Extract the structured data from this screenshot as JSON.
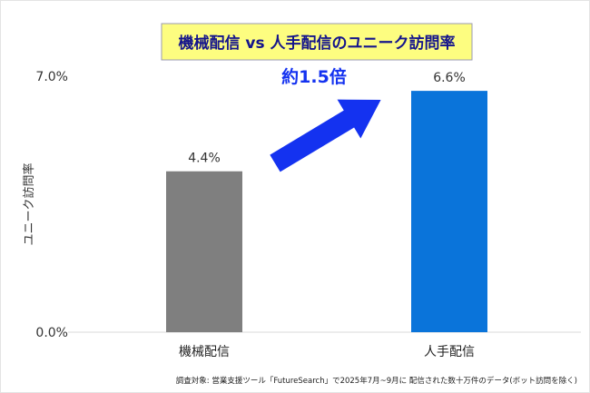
{
  "chart_data": {
    "type": "bar",
    "title": "機械配信 vs 人手配信のユニーク訪問率",
    "categories": [
      "機械配信",
      "人手配信"
    ],
    "values": [
      4.4,
      6.6
    ],
    "data_labels": [
      "4.4%",
      "6.6%"
    ],
    "colors": [
      "#7f7f7f",
      "#0a74da"
    ],
    "ylabel": "ユニーク訪問率",
    "xlabel": "",
    "ylim": [
      0,
      7
    ],
    "yticks": [
      0,
      7
    ],
    "ytick_labels": [
      "0.0%",
      "7.0%"
    ],
    "annotation": "約1.5倍",
    "annotation_color": "#1432f0",
    "title_bg": "#fdfd80",
    "title_color": "#14148c",
    "grid": false,
    "footnote": "調査対象: 営業支援ツール「FutureSearch」で2025年7月~9月に 配信された数十万件のデータ(ボット訪問を除く)"
  }
}
